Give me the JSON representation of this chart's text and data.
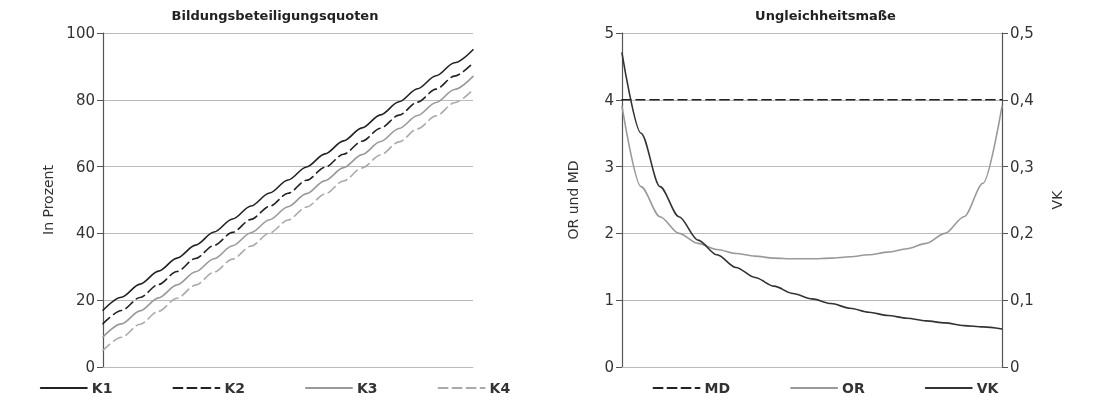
{
  "chart_data": [
    {
      "type": "line",
      "title": "Bildungsbeteiligungsquoten",
      "ylabel": "In Prozent",
      "categories": [
        null,
        null,
        null,
        null,
        null,
        null,
        null,
        null,
        null,
        null,
        null,
        null,
        null,
        null,
        null,
        null,
        null,
        null,
        null,
        null,
        null
      ],
      "series": [
        {
          "name": "K1",
          "color": "#222222",
          "line_style": "solid",
          "values": [
            17,
            20.9,
            24.8,
            28.7,
            32.6,
            36.5,
            40.4,
            44.3,
            48.2,
            52.1,
            56,
            59.9,
            63.8,
            67.7,
            71.6,
            75.5,
            79.4,
            83.3,
            87.2,
            91.1,
            95
          ]
        },
        {
          "name": "K2",
          "color": "#222222",
          "line_style": "dashed",
          "values": [
            13,
            16.9,
            20.8,
            24.7,
            28.6,
            32.5,
            36.4,
            40.3,
            44.2,
            48.1,
            52,
            55.9,
            59.8,
            63.7,
            67.6,
            71.5,
            75.4,
            79.3,
            83.2,
            87.1,
            91
          ]
        },
        {
          "name": "K3",
          "color": "#999999",
          "line_style": "solid",
          "values": [
            9,
            12.9,
            16.8,
            20.7,
            24.6,
            28.5,
            32.4,
            36.3,
            40.2,
            44.1,
            48,
            51.9,
            55.8,
            59.7,
            63.6,
            67.5,
            71.4,
            75.3,
            79.2,
            83.1,
            87
          ]
        },
        {
          "name": "K4",
          "color": "#aaaaaa",
          "line_style": "dashed",
          "values": [
            5,
            8.9,
            12.8,
            16.7,
            20.6,
            24.5,
            28.4,
            32.3,
            36.2,
            40.1,
            44,
            47.9,
            51.8,
            55.7,
            59.6,
            63.5,
            67.4,
            71.3,
            75.2,
            79.1,
            83
          ]
        }
      ],
      "ylim": [
        0,
        100
      ],
      "yticks": [
        0,
        20,
        40,
        60,
        80,
        100
      ],
      "grid": "y",
      "legend": "bottom",
      "marker": "none",
      "tick_labels": "y"
    },
    {
      "type": "line",
      "title": "Ungleichheitsmaße",
      "ylabel": "OR und MD",
      "y2label": "VK",
      "categories": [
        null,
        null,
        null,
        null,
        null,
        null,
        null,
        null,
        null,
        null,
        null,
        null,
        null,
        null,
        null,
        null,
        null,
        null,
        null,
        null,
        null
      ],
      "series": [
        {
          "name": "MD",
          "color": "#222222",
          "line_style": "dashed",
          "values": [
            4,
            4,
            4,
            4,
            4,
            4,
            4,
            4,
            4,
            4,
            4,
            4,
            4,
            4,
            4,
            4,
            4,
            4,
            4,
            4,
            4
          ]
        },
        {
          "name": "OR",
          "color": "#999999",
          "line_style": "solid",
          "values": [
            3.9,
            2.7,
            2.25,
            2.0,
            1.85,
            1.76,
            1.7,
            1.66,
            1.63,
            1.62,
            1.62,
            1.63,
            1.65,
            1.68,
            1.72,
            1.77,
            1.85,
            2.0,
            2.25,
            2.75,
            3.9
          ]
        },
        {
          "name": "VK",
          "color": "#333333",
          "line_style": "solid",
          "axis": "y2",
          "values": [
            0.47,
            0.35,
            0.27,
            0.225,
            0.19,
            0.168,
            0.149,
            0.134,
            0.121,
            0.11,
            0.102,
            0.095,
            0.088,
            0.082,
            0.077,
            0.073,
            0.069,
            0.066,
            0.062,
            0.06,
            0.057
          ]
        }
      ],
      "ylim": [
        0,
        5
      ],
      "yticks": [
        0,
        1,
        2,
        3,
        4,
        5
      ],
      "y2lim": [
        0,
        0.5
      ],
      "y2ticks": [
        0,
        {
          "value": 0.1,
          "label": "0,1"
        },
        {
          "value": 0.2,
          "label": "0,2"
        },
        {
          "value": 0.3,
          "label": "0,3"
        },
        {
          "value": 0.4,
          "label": "0,4"
        },
        {
          "value": 0.5,
          "label": "0,5"
        }
      ],
      "grid": "y",
      "legend": "bottom",
      "marker": "none",
      "tick_labels": "y"
    }
  ]
}
